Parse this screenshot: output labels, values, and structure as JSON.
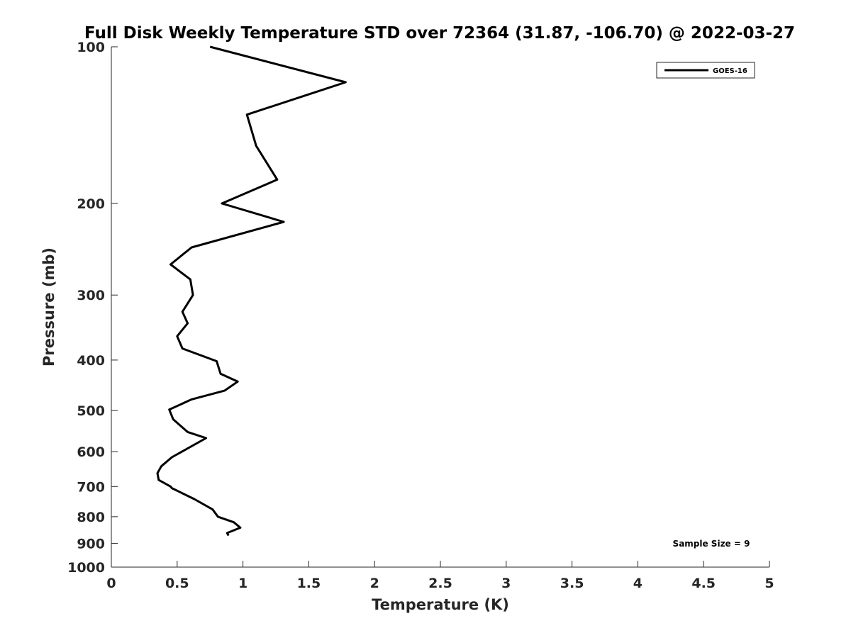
{
  "chart_data": {
    "type": "line",
    "title": "Full Disk Weekly Temperature STD over 72364 (31.87, -106.70) @ 2022-03-27",
    "xlabel": "Temperature (K)",
    "ylabel": "Pressure (mb)",
    "xlim": [
      0,
      5
    ],
    "ylim": [
      1000,
      100
    ],
    "y_scale": "log",
    "y_reversed": true,
    "x_ticks": [
      "0",
      "0.5",
      "1",
      "1.5",
      "2",
      "2.5",
      "3",
      "3.5",
      "4",
      "4.5",
      "5"
    ],
    "y_ticks": [
      "100",
      "200",
      "300",
      "400",
      "500",
      "600",
      "700",
      "800",
      "900",
      "1000"
    ],
    "grid": false,
    "legend": {
      "placement": "top-right",
      "entries": [
        "GOES-16"
      ]
    },
    "annotation": "Sample Size = 9",
    "series": [
      {
        "name": "GOES-16",
        "color": "#000000",
        "points": [
          {
            "x": 0.75,
            "y": 100
          },
          {
            "x": 1.78,
            "y": 117
          },
          {
            "x": 1.03,
            "y": 135
          },
          {
            "x": 1.1,
            "y": 155
          },
          {
            "x": 1.26,
            "y": 180
          },
          {
            "x": 0.84,
            "y": 200
          },
          {
            "x": 1.31,
            "y": 217
          },
          {
            "x": 0.61,
            "y": 243
          },
          {
            "x": 0.45,
            "y": 262
          },
          {
            "x": 0.6,
            "y": 280
          },
          {
            "x": 0.62,
            "y": 300
          },
          {
            "x": 0.54,
            "y": 323
          },
          {
            "x": 0.58,
            "y": 340
          },
          {
            "x": 0.5,
            "y": 360
          },
          {
            "x": 0.54,
            "y": 380
          },
          {
            "x": 0.8,
            "y": 402
          },
          {
            "x": 0.83,
            "y": 425
          },
          {
            "x": 0.96,
            "y": 440
          },
          {
            "x": 0.86,
            "y": 458
          },
          {
            "x": 0.61,
            "y": 476
          },
          {
            "x": 0.44,
            "y": 498
          },
          {
            "x": 0.47,
            "y": 520
          },
          {
            "x": 0.58,
            "y": 550
          },
          {
            "x": 0.72,
            "y": 565
          },
          {
            "x": 0.46,
            "y": 615
          },
          {
            "x": 0.38,
            "y": 640
          },
          {
            "x": 0.35,
            "y": 660
          },
          {
            "x": 0.36,
            "y": 680
          },
          {
            "x": 0.45,
            "y": 700
          },
          {
            "x": 0.46,
            "y": 705
          },
          {
            "x": 0.63,
            "y": 740
          },
          {
            "x": 0.77,
            "y": 775
          },
          {
            "x": 0.81,
            "y": 800
          },
          {
            "x": 0.93,
            "y": 820
          },
          {
            "x": 0.98,
            "y": 840
          },
          {
            "x": 0.88,
            "y": 860
          },
          {
            "x": 0.89,
            "y": 870
          }
        ]
      }
    ]
  }
}
